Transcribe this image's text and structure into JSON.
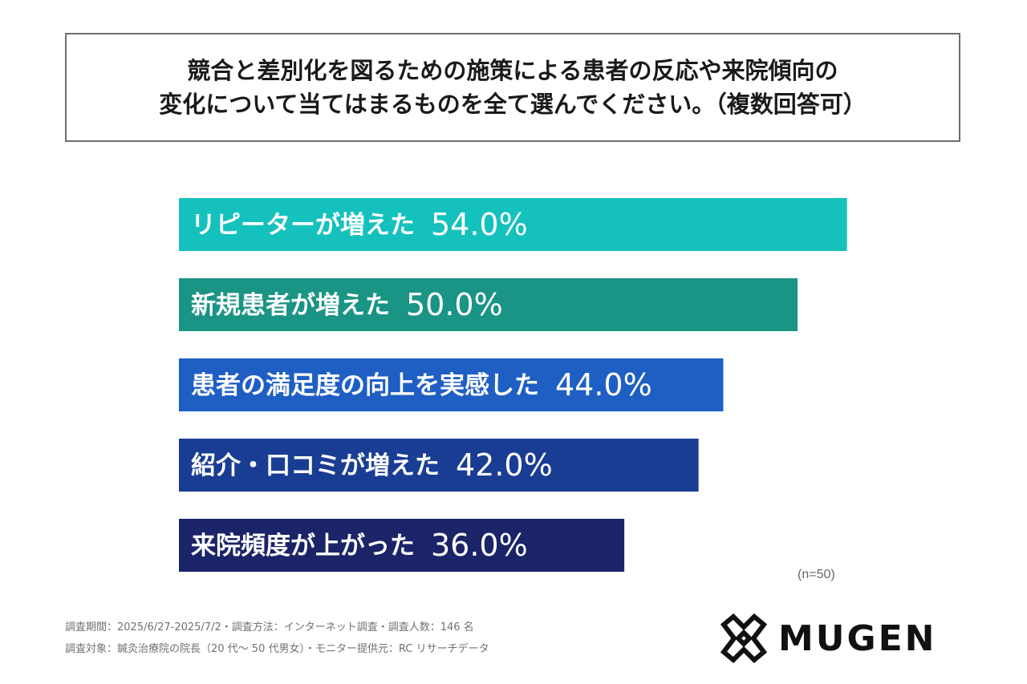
{
  "header": {
    "title_line1": "競合と差別化を図るための施策による患者の反応や来院傾向の",
    "title_line2": "変化について当てはまるものを全て選んでください。（複数回答可）"
  },
  "chart_data": {
    "type": "bar",
    "orientation": "horizontal",
    "categories": [
      "リピーターが増えた",
      "新規患者が増えた",
      "患者の満足度の向上を実感した",
      "紹介・口コミが増えた",
      "来院頻度が上がった"
    ],
    "values": [
      54.0,
      50.0,
      44.0,
      42.0,
      36.0
    ],
    "value_labels": [
      "54.0%",
      "50.0%",
      "44.0%",
      "42.0%",
      "36.0%"
    ],
    "bar_colors": [
      "#14c1bd",
      "#1a9485",
      "#1f5fc4",
      "#1a3d94",
      "#1b2468"
    ],
    "xlim": [
      0,
      100
    ],
    "grid": false,
    "legend": "none"
  },
  "sample_note": "(n=50)",
  "footnotes": [
    "調査期間：2025/6/27-2025/7/2・調査方法：インターネット調査・調査人数：146 名",
    "調査対象：鍼灸治療院の院長（20 代～ 50 代男女）・モニター提供元：RC リサーチデータ"
  ],
  "logo": {
    "text": "MUGEN",
    "icon": "mugen-x-icon",
    "color": "#111111"
  }
}
